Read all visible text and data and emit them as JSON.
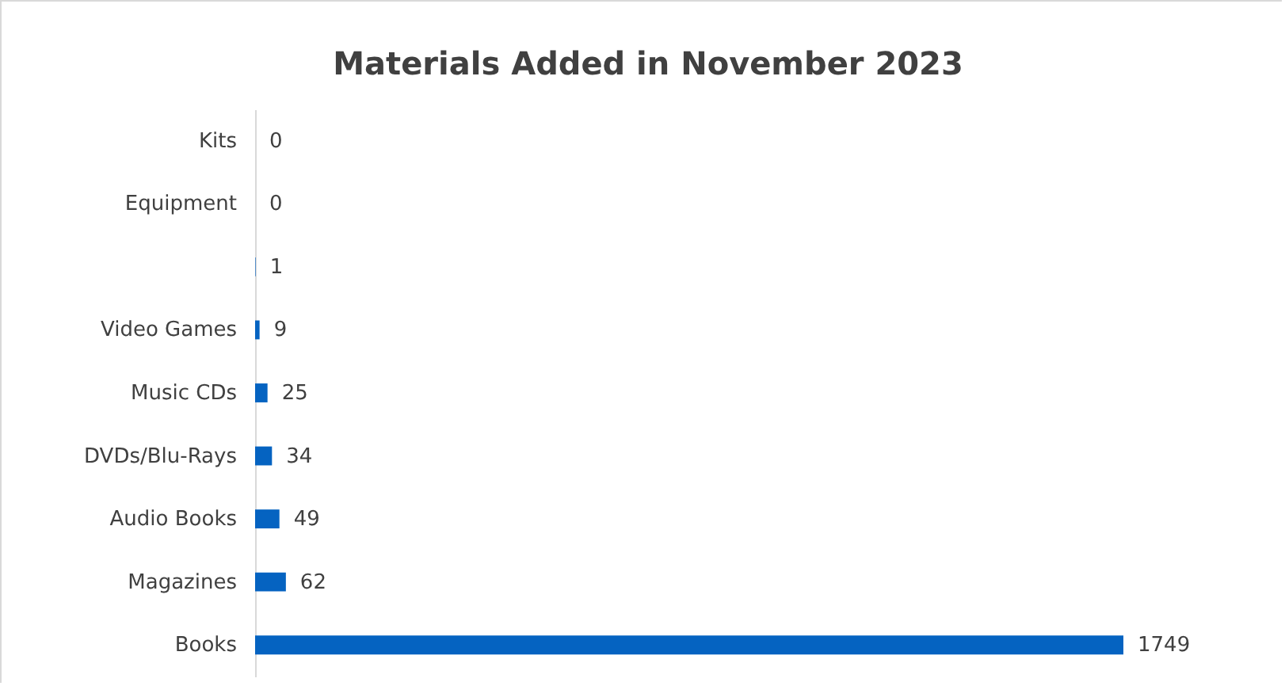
{
  "chart_data": {
    "type": "bar",
    "orientation": "horizontal",
    "title": "Materials Added in November 2023",
    "categories": [
      "Kits",
      "Equipment",
      null,
      "Video Games",
      "Music CDs",
      "DVDs/Blu-Rays",
      "Audio Books",
      "Magazines",
      "Books"
    ],
    "values": [
      0,
      0,
      1,
      9,
      25,
      34,
      49,
      62,
      1749
    ],
    "color": "#0563c1",
    "data_labels": true
  }
}
